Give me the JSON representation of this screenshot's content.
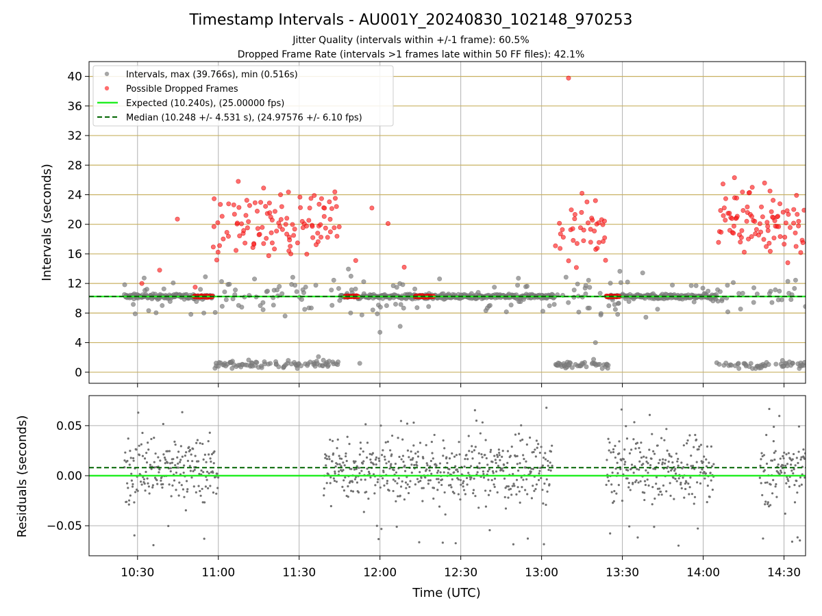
{
  "chart_data": {
    "type": "scatter",
    "title": "Timestamp Intervals - AU001Y_20240830_102148_970253",
    "subtitle_lines": [
      "Jitter Quality (intervals within +/-1 frame): 60.5%",
      "Dropped Frame Rate (intervals >1 frames late within 50 FF files): 42.1%"
    ],
    "xlabel": "Time (UTC)",
    "x_range": [
      "10:12",
      "14:38"
    ],
    "x_ticks": [
      "10:30",
      "11:00",
      "11:30",
      "12:00",
      "12:30",
      "13:00",
      "13:30",
      "14:00",
      "14:30"
    ],
    "top_panel": {
      "ylabel": "Intervals (seconds)",
      "ylim": [
        -1.5,
        42
      ],
      "y_ticks": [
        0,
        4,
        8,
        12,
        16,
        20,
        24,
        28,
        32,
        36,
        40
      ],
      "grid": "horizontal gold lines and vertical gray lines",
      "legend_position": "top-left",
      "legend": [
        "Intervals, max (39.766s), min (0.516s)",
        "Possible Dropped Frames",
        "Expected (10.240s), (25.00000 fps)",
        "Median (10.248 +/- 4.531 s), (24.97576 +/- 6.10 fps)"
      ],
      "expected_line": 10.24,
      "median_line": 10.248,
      "segments": [
        {
          "start": "10:25",
          "end": "10:58",
          "base": 10.24,
          "dropped_level": 10.24,
          "dropped_start": "10:51",
          "lows": [],
          "highs": [
            12,
            13.8,
            20.7,
            11.5
          ]
        },
        {
          "start": "10:58",
          "end": "11:45",
          "base": 10.24,
          "dropped_level": 20,
          "lows": [
            1.0,
            0.9,
            1.1,
            0.5,
            2.1
          ],
          "highs": [
            25.8,
            24.9,
            16.4,
            23.9
          ]
        },
        {
          "start": "11:45",
          "end": "12:15",
          "base": 10.24,
          "dropped_level": 10.24,
          "dropped_start": "11:47",
          "dropped_end": "11:52",
          "lows": [
            1.2,
            5.4,
            6.2
          ],
          "highs": [
            15.1,
            22.2,
            20.1,
            14.2
          ]
        },
        {
          "start": "12:15",
          "end": "13:05",
          "base": 10.24,
          "dropped_level": 10.24,
          "dropped_start": "12:13",
          "dropped_end": "12:20",
          "lows": [],
          "highs": []
        },
        {
          "start": "13:05",
          "end": "13:25",
          "base": 10.24,
          "dropped_level": 19,
          "lows": [
            1.0,
            1.2,
            4.0
          ],
          "highs": [
            39.766,
            24.2,
            23.2
          ]
        },
        {
          "start": "13:25",
          "end": "14:05",
          "base": 10.24,
          "dropped_level": 10.24,
          "dropped_start": "13:24",
          "dropped_end": "13:29",
          "lows": [],
          "highs": []
        },
        {
          "start": "14:05",
          "end": "14:38",
          "base": 10.24,
          "dropped_level": 20,
          "lows": [
            0.5,
            0.6,
            0.8
          ],
          "highs": [
            26.3,
            25.0,
            24.5,
            14.8
          ]
        }
      ]
    },
    "bottom_panel": {
      "ylabel": "Residuals (seconds)",
      "ylim": [
        -0.08,
        0.08
      ],
      "y_ticks": [
        0.05,
        0.0,
        -0.05
      ],
      "y_tick_labels": [
        "0.05",
        "0.00",
        "−0.05"
      ],
      "expected_line": 0.0,
      "median_line": 0.008,
      "grid": "gray",
      "clusters": [
        {
          "start": "10:25",
          "end": "11:00"
        },
        {
          "start": "11:39",
          "end": "13:04"
        },
        {
          "start": "13:24",
          "end": "14:04"
        },
        {
          "start": "14:21",
          "end": "14:38"
        }
      ]
    },
    "colors": {
      "interval": "#808080",
      "dropped": "#ff2020",
      "expected": "#22ee22",
      "median": "#006400",
      "hgrid_top": "#c8b060",
      "grid": "#b0b0b0"
    }
  }
}
